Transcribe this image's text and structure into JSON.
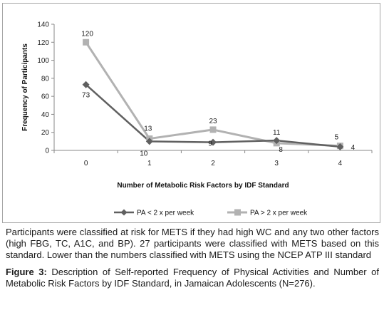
{
  "chart_data": {
    "type": "line",
    "title": "",
    "xlabel": "Number of Metabolic Risk Factors by IDF Standard",
    "ylabel": "Frequency of Participants",
    "categories": [
      "0",
      "1",
      "2",
      "3",
      "4"
    ],
    "ylim": [
      0,
      140
    ],
    "yticks": [
      "0",
      "20",
      "40",
      "60",
      "80",
      "100",
      "120",
      "140"
    ],
    "grid": false,
    "legend_position": "bottom",
    "series": [
      {
        "name": "PA < 2 x per week",
        "values": [
          73,
          10,
          9,
          11,
          4
        ],
        "labels": [
          "73",
          "10",
          "9",
          "11",
          "4"
        ],
        "color": "#606060",
        "marker": "diamond"
      },
      {
        "name": "PA > 2 x per week",
        "values": [
          120,
          13,
          23,
          8,
          5
        ],
        "labels": [
          "120",
          "13",
          "23",
          "8",
          "5"
        ],
        "color": "#b2b2b2",
        "marker": "square"
      }
    ]
  },
  "caption": {
    "note": "Participants were classified at risk for METS if they had high WC and any two other factors (high FBG, TC, A1C, and BP). 27 participants were classified with METS based on this standard. Lower than the numbers classified with METS using the NCEP ATP III standard",
    "figure_label": "Figure 3:",
    "figure_text": " Description of Self-reported Frequency of Physical Activities and Number of Metabolic Risk Factors by IDF Standard, in Jamaican Adolescents (N=276)."
  }
}
